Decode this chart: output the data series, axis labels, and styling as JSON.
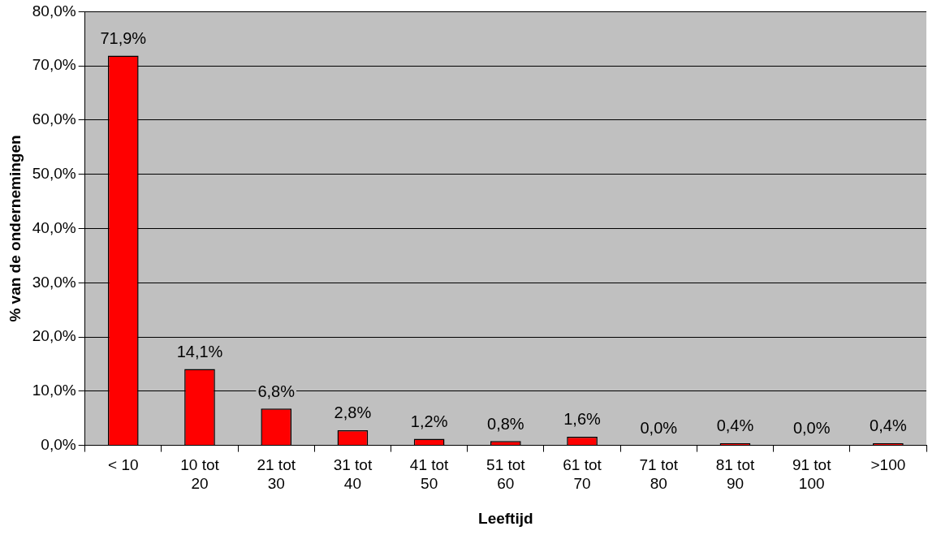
{
  "chart_data": {
    "type": "bar",
    "xlabel": "Leeftijd",
    "ylabel": "% van de ondernemingen",
    "categories": [
      "< 10",
      "10 tot 20",
      "21 tot 30",
      "31 tot 40",
      "41 tot 50",
      "51 tot 60",
      "61 tot 70",
      "71 tot 80",
      "81 tot 90",
      "91 tot 100",
      ">100"
    ],
    "values": [
      71.9,
      14.1,
      6.8,
      2.8,
      1.2,
      0.8,
      1.6,
      0.0,
      0.4,
      0.0,
      0.4
    ],
    "value_labels": [
      "71,9%",
      "14,1%",
      "6,8%",
      "2,8%",
      "1,2%",
      "0,8%",
      "1,6%",
      "0,0%",
      "0,4%",
      "0,0%",
      "0,4%"
    ],
    "color": "#ff0000",
    "ylim": [
      0,
      80
    ],
    "yticks": [
      {
        "value": 0,
        "label": "0,0%"
      },
      {
        "value": 10,
        "label": "10,0%"
      },
      {
        "value": 20,
        "label": "20,0%"
      },
      {
        "value": 30,
        "label": "30,0%"
      },
      {
        "value": 40,
        "label": "40,0%"
      },
      {
        "value": 50,
        "label": "50,0%"
      },
      {
        "value": 60,
        "label": "60,0%"
      },
      {
        "value": 70,
        "label": "70,0%"
      },
      {
        "value": 80,
        "label": "80,0%"
      }
    ],
    "grid": "y",
    "legend": false
  }
}
